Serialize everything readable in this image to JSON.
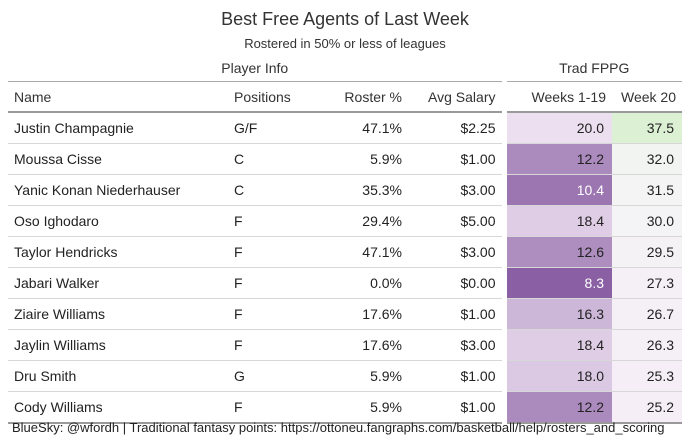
{
  "chart_data": {
    "type": "table",
    "title": "Best Free Agents of Last Week",
    "subtitle": "Rostered in 50% or less of leagues",
    "spanners": {
      "player_info": "Player Info",
      "trad_fppg": "Trad FPPG"
    },
    "columns": {
      "name": "Name",
      "positions": "Positions",
      "roster": "Roster %",
      "salary": "Avg Salary",
      "weeks": "Weeks 1-19",
      "week20": "Week 20"
    },
    "rows": [
      {
        "name": "Justin Champagnie",
        "positions": "G/F",
        "roster": "47.1%",
        "salary": "$2.25",
        "weeks": 20.0,
        "week20": 37.5
      },
      {
        "name": "Moussa Cisse",
        "positions": "C",
        "roster": "5.9%",
        "salary": "$1.00",
        "weeks": 12.2,
        "week20": 32.0
      },
      {
        "name": "Yanic Konan Niederhauser",
        "positions": "C",
        "roster": "35.3%",
        "salary": "$3.00",
        "weeks": 10.4,
        "week20": 31.5
      },
      {
        "name": "Oso Ighodaro",
        "positions": "F",
        "roster": "29.4%",
        "salary": "$5.00",
        "weeks": 18.4,
        "week20": 30.0
      },
      {
        "name": "Taylor Hendricks",
        "positions": "F",
        "roster": "47.1%",
        "salary": "$3.00",
        "weeks": 12.6,
        "week20": 29.5
      },
      {
        "name": "Jabari Walker",
        "positions": "F",
        "roster": "0.0%",
        "salary": "$0.00",
        "weeks": 8.3,
        "week20": 27.3
      },
      {
        "name": "Ziaire Williams",
        "positions": "F",
        "roster": "17.6%",
        "salary": "$1.00",
        "weeks": 16.3,
        "week20": 26.7
      },
      {
        "name": "Jaylin Williams",
        "positions": "F",
        "roster": "17.6%",
        "salary": "$3.00",
        "weeks": 18.4,
        "week20": 26.3
      },
      {
        "name": "Dru Smith",
        "positions": "G",
        "roster": "5.9%",
        "salary": "$1.00",
        "weeks": 18.0,
        "week20": 25.3
      },
      {
        "name": "Cody Williams",
        "positions": "F",
        "roster": "5.9%",
        "salary": "$1.00",
        "weeks": 12.2,
        "week20": 25.2
      }
    ],
    "colors": {
      "purple_low": "#8a5fa3",
      "purple_high": "#ecdff0",
      "w20_low": "#f5eef7",
      "w20_mid": "#f4f4f4",
      "w20_high": "#dcf0d4"
    }
  },
  "footer": "BlueSky: @wfordh | Traditional fantasy points: https://ottoneu.fangraphs.com/basketball/help/rosters_and_scoring"
}
